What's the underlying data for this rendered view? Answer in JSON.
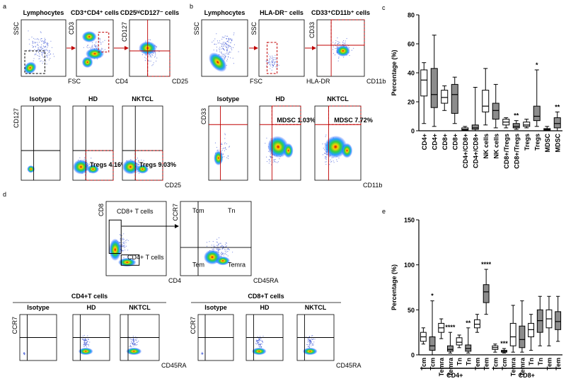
{
  "a": {
    "letter": "a",
    "top": [
      {
        "title": "Lymphocytes",
        "y_label": "SSC",
        "x_label": "FSC"
      },
      {
        "title": "CD3⁺CD4⁺ cells",
        "y_label": "CD3",
        "x_label": "CD4"
      },
      {
        "title": "CD25ʰⁱCD127⁻ cells",
        "y_label": "CD127",
        "x_label": "CD25"
      }
    ],
    "bottom": {
      "y_label": "CD127",
      "x_label": "CD25",
      "plots": [
        {
          "title": "Isotype"
        },
        {
          "title": "HD",
          "gate": "Tregs 4.16%"
        },
        {
          "title": "NKTCL",
          "gate": "Tregs 9.03%"
        }
      ]
    }
  },
  "b": {
    "letter": "b",
    "top": [
      {
        "title": "Lymphocytes",
        "y_label": "SSC",
        "x_label": "FSC"
      },
      {
        "title": "HLA-DR⁻ cells",
        "y_label": "SSC",
        "x_label": "HLA-DR"
      },
      {
        "title": "CD33⁺CD11b⁺ cells",
        "y_label": "CD33",
        "x_label": "CD11b"
      }
    ],
    "bottom": {
      "y_label": "CD33",
      "x_label": "CD11b",
      "plots": [
        {
          "title": "Isotype"
        },
        {
          "title": "HD",
          "gate": "MDSC 1.03%"
        },
        {
          "title": "NKTCL",
          "gate": "MDSC 7.72%"
        }
      ]
    }
  },
  "d": {
    "letter": "d",
    "top": [
      {
        "y_label": "CD8",
        "x_label": "CD4",
        "gates": [
          "CD8+ T cells",
          "CD4+ T cells"
        ]
      },
      {
        "y_label": "CCR7",
        "x_label": "CD45RA",
        "quadrants": [
          "Tcm",
          "Tn",
          "Tem",
          "Temra"
        ]
      }
    ],
    "bottom": [
      {
        "title": "CD4+T cells",
        "y_label": "CCR7",
        "x_label": "CD45RA",
        "plots": [
          "Isotype",
          "HD",
          "NKTCL"
        ]
      },
      {
        "title": "CD8+T cells",
        "y_label": "CCR7",
        "x_label": "CD45RA",
        "plots": [
          "Isotype",
          "HD",
          "NKTCL"
        ]
      }
    ]
  },
  "chart_data": [
    {
      "type": "box",
      "label": "c",
      "y_label": "Percentage (%)",
      "ylim": [
        0,
        80
      ],
      "yticks": [
        0,
        20,
        40,
        60,
        80
      ],
      "categories": [
        "CD4+",
        "CD4+",
        "CD8+",
        "CD8+",
        "CD4+/CD8+",
        "CD4+/CD8+",
        "NK cells",
        "NK cells",
        "CD8+/Tregs",
        "CD8+/Tregs",
        "Tregs",
        "Tregs",
        "MDSC",
        "MDSC"
      ],
      "boxes": [
        {
          "min": 5,
          "q1": 24,
          "median": 35,
          "q3": 42,
          "max": 47,
          "color": "#ffffff"
        },
        {
          "min": 3,
          "q1": 16,
          "median": 25,
          "q3": 43,
          "max": 66,
          "color": "#8c8c8c"
        },
        {
          "min": 14,
          "q1": 19,
          "median": 23,
          "q3": 28,
          "max": 31,
          "color": "#ffffff"
        },
        {
          "min": 5,
          "q1": 12,
          "median": 25,
          "q3": 32,
          "max": 37,
          "color": "#8c8c8c"
        },
        {
          "min": 0.2,
          "q1": 0.5,
          "median": 1,
          "q3": 2,
          "max": 3,
          "color": "#ffffff"
        },
        {
          "min": 0,
          "q1": 1,
          "median": 2,
          "q3": 4,
          "max": 30,
          "color": "#8c8c8c"
        },
        {
          "min": 4,
          "q1": 13,
          "median": 17,
          "q3": 28,
          "max": 43,
          "color": "#ffffff"
        },
        {
          "min": 2,
          "q1": 8,
          "median": 14,
          "q3": 19,
          "max": 32,
          "color": "#8c8c8c"
        },
        {
          "min": 2,
          "q1": 4,
          "median": 6,
          "q3": 8,
          "max": 9,
          "color": "#ffffff"
        },
        {
          "min": 1,
          "q1": 2,
          "median": 3,
          "q3": 5,
          "max": 7,
          "color": "#8c8c8c"
        },
        {
          "min": 2,
          "q1": 3,
          "median": 4,
          "q3": 6,
          "max": 8,
          "color": "#ffffff"
        },
        {
          "min": 3,
          "q1": 7,
          "median": 10,
          "q3": 17,
          "max": 42,
          "color": "#8c8c8c"
        },
        {
          "min": 0,
          "q1": 0.5,
          "median": 1,
          "q3": 1.5,
          "max": 3,
          "color": "#ffffff"
        },
        {
          "min": 0,
          "q1": 2,
          "median": 5,
          "q3": 9,
          "max": 13,
          "color": "#8c8c8c"
        }
      ],
      "significance": [
        null,
        null,
        null,
        null,
        null,
        null,
        null,
        null,
        null,
        "**",
        null,
        "*",
        null,
        "**"
      ]
    },
    {
      "type": "box",
      "label": "e",
      "y_label": "Percentage (%)",
      "ylim": [
        0,
        150
      ],
      "yticks": [
        0,
        50,
        100,
        150
      ],
      "groups": [
        {
          "label": "CD4+",
          "categories": [
            "Tcm",
            "Tcm",
            "Temra",
            "Temra",
            "Tn",
            "Tn",
            "Tem",
            "Tem"
          ],
          "boxes": [
            {
              "min": 12,
              "q1": 15,
              "median": 20,
              "q3": 25,
              "max": 30,
              "color": "#ffffff"
            },
            {
              "min": 0,
              "q1": 5,
              "median": 10,
              "q3": 20,
              "max": 60,
              "color": "#8c8c8c"
            },
            {
              "min": 18,
              "q1": 25,
              "median": 30,
              "q3": 35,
              "max": 40,
              "color": "#ffffff"
            },
            {
              "min": 2,
              "q1": 4,
              "median": 6,
              "q3": 10,
              "max": 25,
              "color": "#8c8c8c"
            },
            {
              "min": 8,
              "q1": 11,
              "median": 14,
              "q3": 19,
              "max": 22,
              "color": "#ffffff"
            },
            {
              "min": 2,
              "q1": 4,
              "median": 7,
              "q3": 11,
              "max": 30,
              "color": "#8c8c8c"
            },
            {
              "min": 25,
              "q1": 30,
              "median": 34,
              "q3": 39,
              "max": 45,
              "color": "#ffffff"
            },
            {
              "min": 45,
              "q1": 58,
              "median": 70,
              "q3": 78,
              "max": 95,
              "color": "#8c8c8c"
            }
          ],
          "significance": [
            null,
            "*",
            null,
            "****",
            null,
            "**",
            null,
            "****"
          ]
        },
        {
          "label": "CD8+",
          "categories": [
            "Tcm",
            "Tcm",
            "Temra",
            "Temra",
            "Tn",
            "Tn",
            "Tem",
            "Tem"
          ],
          "boxes": [
            {
              "min": 3,
              "q1": 6,
              "median": 8,
              "q3": 10,
              "max": 12,
              "color": "#ffffff"
            },
            {
              "min": 2,
              "q1": 3,
              "median": 4,
              "q3": 5,
              "max": 7,
              "color": "#8c8c8c"
            },
            {
              "min": 3,
              "q1": 10,
              "median": 20,
              "q3": 35,
              "max": 55,
              "color": "#ffffff"
            },
            {
              "min": 3,
              "q1": 8,
              "median": 17,
              "q3": 32,
              "max": 60,
              "color": "#8c8c8c"
            },
            {
              "min": 5,
              "q1": 20,
              "median": 28,
              "q3": 35,
              "max": 45,
              "color": "#ffffff"
            },
            {
              "min": 10,
              "q1": 25,
              "median": 38,
              "q3": 50,
              "max": 65,
              "color": "#8c8c8c"
            },
            {
              "min": 10,
              "q1": 30,
              "median": 40,
              "q3": 50,
              "max": 65,
              "color": "#ffffff"
            },
            {
              "min": 15,
              "q1": 28,
              "median": 37,
              "q3": 48,
              "max": 65,
              "color": "#8c8c8c"
            }
          ],
          "significance": [
            null,
            "***",
            null,
            null,
            null,
            null,
            null,
            null
          ]
        }
      ]
    }
  ]
}
